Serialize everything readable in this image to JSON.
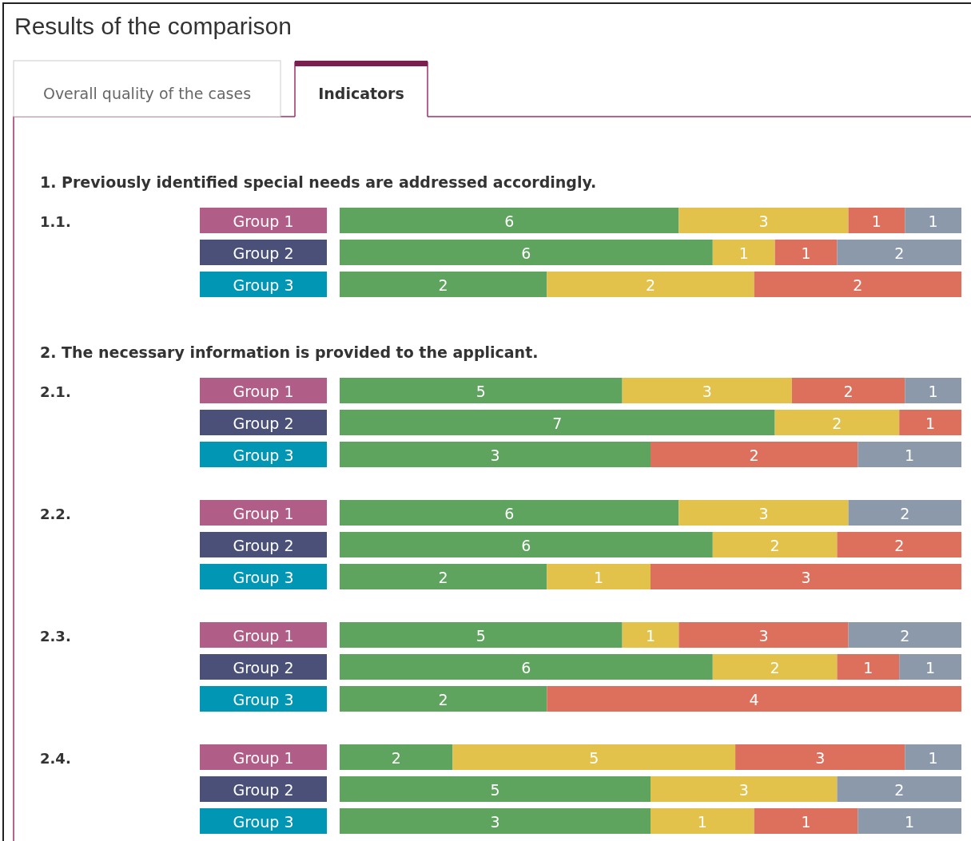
{
  "chart_data": [
    {
      "type": "bar",
      "orientation": "horizontal",
      "stacked": true,
      "data_labels": true,
      "annotations": [
        "Results of the comparison",
        "Overall quality of the cases",
        "Indicators"
      ],
      "subtitle": "1. Previously identified special needs are addressed accordingly.",
      "ylabel": "1.1.",
      "categories": [
        "Group 1"
      ],
      "series": [
        {
          "color": "#5ea35e",
          "values": [
            6
          ]
        },
        {
          "color": "#e3c24b",
          "values": [
            3
          ]
        },
        {
          "color": "#dc705c",
          "values": [
            1
          ]
        },
        {
          "color": "#8c99aa",
          "values": [
            1
          ]
        }
      ]
    },
    {
      "type": "bar",
      "orientation": "horizontal",
      "stacked": true,
      "data_labels": true,
      "categories": [
        "Group 2"
      ],
      "series": [
        {
          "color": "#5ea35e",
          "values": [
            6
          ]
        },
        {
          "color": "#e3c24b",
          "values": [
            1
          ]
        },
        {
          "color": "#dc705c",
          "values": [
            1
          ]
        },
        {
          "color": "#8c99aa",
          "values": [
            2
          ]
        }
      ]
    },
    {
      "type": "bar",
      "orientation": "horizontal",
      "stacked": true,
      "data_labels": true,
      "categories": [
        "Group 3"
      ],
      "series": [
        {
          "color": "#5ea35e",
          "values": [
            2
          ]
        },
        {
          "color": "#e3c24b",
          "values": [
            2
          ]
        },
        {
          "color": "#dc705c",
          "values": [
            2
          ]
        }
      ]
    },
    {
      "type": "bar",
      "orientation": "horizontal",
      "stacked": true,
      "data_labels": true,
      "subtitle": "2. The necessary information is provided to the applicant.",
      "ylabel": "2.1.",
      "categories": [
        "Group 1"
      ],
      "series": [
        {
          "color": "#5ea35e",
          "values": [
            5
          ]
        },
        {
          "color": "#e3c24b",
          "values": [
            3
          ]
        },
        {
          "color": "#dc705c",
          "values": [
            2
          ]
        },
        {
          "color": "#8c99aa",
          "values": [
            1
          ]
        }
      ]
    },
    {
      "type": "bar",
      "orientation": "horizontal",
      "stacked": true,
      "data_labels": true,
      "categories": [
        "Group 2"
      ],
      "series": [
        {
          "color": "#5ea35e",
          "values": [
            7
          ]
        },
        {
          "color": "#e3c24b",
          "values": [
            2
          ]
        },
        {
          "color": "#dc705c",
          "values": [
            1
          ]
        }
      ]
    },
    {
      "type": "bar",
      "orientation": "horizontal",
      "stacked": true,
      "data_labels": true,
      "categories": [
        "Group 3"
      ],
      "series": [
        {
          "color": "#5ea35e",
          "values": [
            3
          ]
        },
        {
          "color": "#dc705c",
          "values": [
            2
          ]
        },
        {
          "color": "#8c99aa",
          "values": [
            1
          ]
        }
      ]
    },
    {
      "type": "bar",
      "orientation": "horizontal",
      "stacked": true,
      "data_labels": true,
      "ylabel": "2.2.",
      "categories": [
        "Group 1"
      ],
      "series": [
        {
          "color": "#5ea35e",
          "values": [
            6
          ]
        },
        {
          "color": "#e3c24b",
          "values": [
            3
          ]
        },
        {
          "color": "#8c99aa",
          "values": [
            2
          ]
        }
      ]
    },
    {
      "type": "bar",
      "orientation": "horizontal",
      "stacked": true,
      "data_labels": true,
      "categories": [
        "Group 2"
      ],
      "series": [
        {
          "color": "#5ea35e",
          "values": [
            6
          ]
        },
        {
          "color": "#e3c24b",
          "values": [
            2
          ]
        },
        {
          "color": "#dc705c",
          "values": [
            2
          ]
        }
      ]
    },
    {
      "type": "bar",
      "orientation": "horizontal",
      "stacked": true,
      "data_labels": true,
      "categories": [
        "Group 3"
      ],
      "series": [
        {
          "color": "#5ea35e",
          "values": [
            2
          ]
        },
        {
          "color": "#e3c24b",
          "values": [
            1
          ]
        },
        {
          "color": "#dc705c",
          "values": [
            3
          ]
        }
      ]
    },
    {
      "type": "bar",
      "orientation": "horizontal",
      "stacked": true,
      "data_labels": true,
      "ylabel": "2.3.",
      "categories": [
        "Group 1"
      ],
      "series": [
        {
          "color": "#5ea35e",
          "values": [
            5
          ]
        },
        {
          "color": "#e3c24b",
          "values": [
            1
          ]
        },
        {
          "color": "#dc705c",
          "values": [
            3
          ]
        },
        {
          "color": "#8c99aa",
          "values": [
            2
          ]
        }
      ]
    },
    {
      "type": "bar",
      "orientation": "horizontal",
      "stacked": true,
      "data_labels": true,
      "categories": [
        "Group 2"
      ],
      "series": [
        {
          "color": "#5ea35e",
          "values": [
            6
          ]
        },
        {
          "color": "#e3c24b",
          "values": [
            2
          ]
        },
        {
          "color": "#dc705c",
          "values": [
            1
          ]
        },
        {
          "color": "#8c99aa",
          "values": [
            1
          ]
        }
      ]
    },
    {
      "type": "bar",
      "orientation": "horizontal",
      "stacked": true,
      "data_labels": true,
      "categories": [
        "Group 3"
      ],
      "series": [
        {
          "color": "#5ea35e",
          "values": [
            2
          ]
        },
        {
          "color": "#dc705c",
          "values": [
            4
          ]
        }
      ]
    },
    {
      "type": "bar",
      "orientation": "horizontal",
      "stacked": true,
      "data_labels": true,
      "ylabel": "2.4.",
      "categories": [
        "Group 1"
      ],
      "series": [
        {
          "color": "#5ea35e",
          "values": [
            2
          ]
        },
        {
          "color": "#e3c24b",
          "values": [
            5
          ]
        },
        {
          "color": "#dc705c",
          "values": [
            3
          ]
        },
        {
          "color": "#8c99aa",
          "values": [
            1
          ]
        }
      ]
    },
    {
      "type": "bar",
      "orientation": "horizontal",
      "stacked": true,
      "data_labels": true,
      "categories": [
        "Group 2"
      ],
      "series": [
        {
          "color": "#5ea35e",
          "values": [
            5
          ]
        },
        {
          "color": "#e3c24b",
          "values": [
            3
          ]
        },
        {
          "color": "#8c99aa",
          "values": [
            2
          ]
        }
      ]
    },
    {
      "type": "bar",
      "orientation": "horizontal",
      "stacked": true,
      "data_labels": true,
      "categories": [
        "Group 3"
      ],
      "series": [
        {
          "color": "#5ea35e",
          "values": [
            3
          ]
        },
        {
          "color": "#e3c24b",
          "values": [
            1
          ]
        },
        {
          "color": "#dc705c",
          "values": [
            1
          ]
        },
        {
          "color": "#8c99aa",
          "values": [
            1
          ]
        }
      ]
    }
  ]
}
